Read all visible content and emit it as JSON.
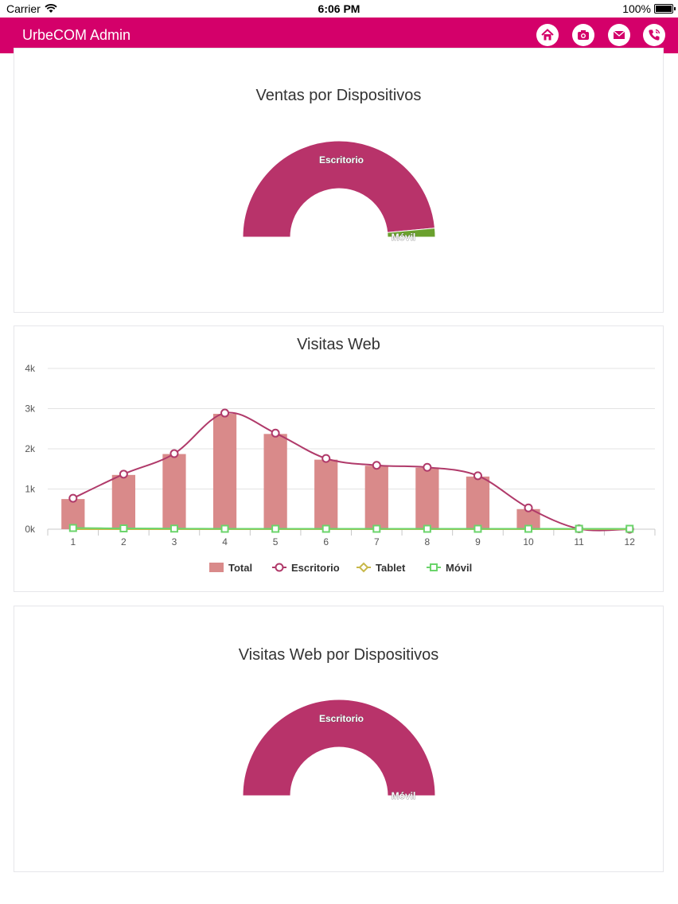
{
  "status_bar": {
    "carrier": "Carrier",
    "time": "6:06 PM",
    "battery": "100%"
  },
  "app": {
    "title": "UrbeCOM Admin",
    "accent": "#d4006a"
  },
  "nav_icons": [
    "home-icon",
    "camera-icon",
    "mail-icon",
    "phone-icon"
  ],
  "chart_data": [
    {
      "type": "pie",
      "title": "Ventas por Dispositivos",
      "variant": "semi-donut",
      "slices": [
        {
          "label": "Escritorio",
          "value": 97,
          "color": "#b8336a"
        },
        {
          "label": "Móvil",
          "value": 3,
          "color": "#6aa02d"
        }
      ]
    },
    {
      "type": "bar",
      "title": "Visitas Web",
      "categories": [
        "1",
        "2",
        "3",
        "4",
        "5",
        "6",
        "7",
        "8",
        "9",
        "10",
        "11",
        "12"
      ],
      "ylim": [
        0,
        4000
      ],
      "yticks": [
        "0k",
        "1k",
        "2k",
        "3k",
        "4k"
      ],
      "grid": true,
      "legend_position": "bottom",
      "series": [
        {
          "name": "Total",
          "type": "bar",
          "color": "#d98a8a",
          "values": [
            750,
            1350,
            1870,
            2870,
            2370,
            1730,
            1580,
            1530,
            1310,
            500,
            0,
            0
          ]
        },
        {
          "name": "Escritorio",
          "type": "line",
          "color": "#b03a6a",
          "values": [
            770,
            1370,
            1880,
            2890,
            2390,
            1760,
            1590,
            1540,
            1330,
            530,
            10,
            0
          ]
        },
        {
          "name": "Tablet",
          "type": "line",
          "color": "#c8b84a",
          "values": [
            0,
            0,
            0,
            0,
            0,
            0,
            0,
            0,
            0,
            0,
            0,
            0
          ]
        },
        {
          "name": "Móvil",
          "type": "line",
          "color": "#6bd46b",
          "values": [
            30,
            20,
            15,
            10,
            10,
            10,
            10,
            10,
            10,
            10,
            10,
            10
          ]
        }
      ]
    },
    {
      "type": "pie",
      "title": "Visitas Web por Dispositivos",
      "variant": "semi-donut",
      "slices": [
        {
          "label": "Escritorio",
          "value": 100,
          "color": "#b8336a"
        },
        {
          "label": "Móvil",
          "value": 0,
          "color": "#6aa02d"
        }
      ]
    }
  ]
}
